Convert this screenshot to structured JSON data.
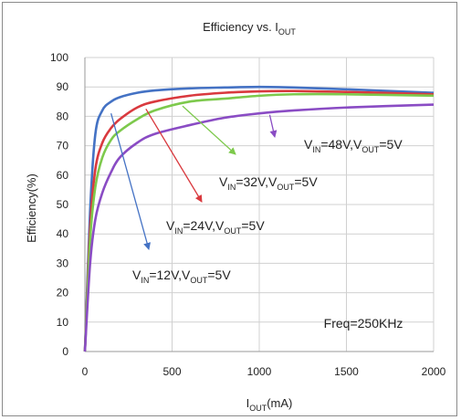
{
  "chart_data": {
    "type": "line",
    "title": {
      "main": "Efficiency vs. I",
      "sub": "OUT"
    },
    "xlabel": {
      "main": "I",
      "sub": "OUT",
      "tail": "(mA)"
    },
    "ylabel": "Efficiency(%)",
    "xlim": [
      0,
      2000
    ],
    "ylim": [
      0,
      100
    ],
    "xticks": [
      "0",
      "500",
      "1000",
      "1500",
      "2000"
    ],
    "yticks": [
      "0",
      "10",
      "20",
      "30",
      "40",
      "50",
      "60",
      "70",
      "80",
      "90",
      "100"
    ],
    "grid": true,
    "series": [
      {
        "color": "#4472c4",
        "x": [
          0,
          30,
          60,
          100,
          150,
          200,
          300,
          400,
          600,
          800,
          1000,
          1200,
          1500,
          2000
        ],
        "y": [
          0,
          48,
          74,
          82,
          85,
          86.5,
          88,
          88.8,
          89.5,
          89.8,
          90,
          89.8,
          89.2,
          88
        ]
      },
      {
        "color": "#d9393e",
        "x": [
          0,
          30,
          60,
          100,
          150,
          200,
          300,
          400,
          600,
          800,
          1000,
          1200,
          1500,
          2000
        ],
        "y": [
          0,
          42,
          62,
          71,
          76,
          79,
          83,
          85,
          87,
          88,
          88.5,
          88.6,
          88.3,
          87.5
        ]
      },
      {
        "color": "#7dc94c",
        "x": [
          0,
          30,
          60,
          100,
          150,
          200,
          300,
          400,
          600,
          800,
          1000,
          1200,
          1500,
          2000
        ],
        "y": [
          0,
          38,
          56,
          66,
          72,
          75,
          79,
          82,
          85,
          86,
          87,
          87.5,
          87.5,
          87
        ]
      },
      {
        "color": "#8a4cc4",
        "x": [
          0,
          30,
          60,
          100,
          150,
          200,
          300,
          400,
          600,
          800,
          1000,
          1200,
          1500,
          2000
        ],
        "y": [
          0,
          30,
          45,
          54,
          61,
          66,
          71,
          74,
          77,
          79.5,
          81,
          82,
          83,
          84
        ]
      }
    ],
    "annotations": [
      {
        "parts": [
          "V",
          "IN",
          "=48V,V",
          "OUT",
          "=5V"
        ],
        "color": "#8a4cc4",
        "text_xy": [
          1200,
          69
        ],
        "arrow_from": [
          1130,
          69
        ],
        "arrow_to": [
          1050,
          72
        ]
      },
      {
        "parts": [
          "V",
          "IN",
          "=32V,V",
          "OUT",
          "=5V"
        ],
        "color": "#7dc94c",
        "text_xy": [
          750,
          57
        ],
        "arrow_from": [
          940,
          67
        ],
        "arrow_to": [
          1050,
          64
        ]
      },
      {
        "parts": [
          "V",
          "IN",
          "=24V,V",
          "OUT",
          "=5V"
        ],
        "color": "#d9393e",
        "text_xy": [
          490,
          41
        ],
        "arrow_from": [
          570,
          50
        ],
        "arrow_to": [
          680,
          52
        ]
      },
      {
        "parts": [
          "V",
          "IN",
          "=12V,V",
          "OUT",
          "=5V"
        ],
        "color": "#4472c4",
        "text_xy": [
          300,
          23
        ],
        "arrow_from": [
          230,
          33
        ],
        "arrow_to": [
          230,
          35
        ]
      }
    ],
    "note": "Freq=250KHz",
    "note_xy": [
      1370,
      8
    ]
  }
}
